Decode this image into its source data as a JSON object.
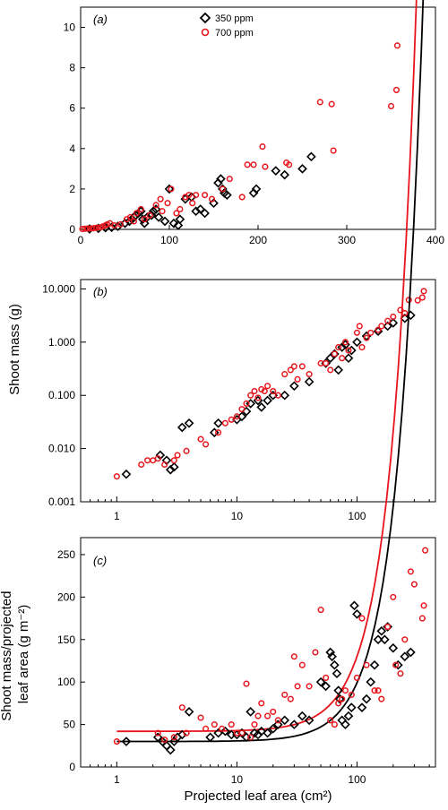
{
  "colors": {
    "s350": "#000000",
    "s700": "#e8141c"
  },
  "chart_data": [
    {
      "panel": "(a)",
      "type": "scatter",
      "xlim": [
        0,
        400
      ],
      "ylim": [
        0,
        11
      ],
      "xticks": [
        "0",
        "100",
        "200",
        "300",
        "400"
      ],
      "yticks": [
        "0",
        "2",
        "4",
        "6",
        "8",
        "10"
      ],
      "ylabel": "Shoot mass (g)",
      "legend": {
        "placement": "top-center",
        "entries": [
          "350 ppm",
          "700 ppm"
        ]
      },
      "series": [
        {
          "name": "350 ppm",
          "marker": "diamond",
          "x": [
            10,
            20,
            28,
            35,
            42,
            50,
            55,
            58,
            60,
            62,
            65,
            68,
            70,
            72,
            75,
            80,
            82,
            85,
            88,
            95,
            100,
            105,
            110,
            112,
            118,
            125,
            130,
            135,
            140,
            150,
            155,
            158,
            160,
            162,
            165,
            195,
            198,
            220,
            230,
            250,
            260
          ],
          "y": [
            0.02,
            0.05,
            0.08,
            0.1,
            0.15,
            0.3,
            0.4,
            0.5,
            0.6,
            0.7,
            0.8,
            0.9,
            0.5,
            0.3,
            0.6,
            0.7,
            0.9,
            1.0,
            0.6,
            0.4,
            2.0,
            0.3,
            0.2,
            0.5,
            1.5,
            1.6,
            0.9,
            1.0,
            0.8,
            1.3,
            2.3,
            2.5,
            2.0,
            1.8,
            1.7,
            1.8,
            2.0,
            2.9,
            2.7,
            3.0,
            3.6
          ]
        },
        {
          "name": "700 ppm",
          "marker": "circle",
          "x": [
            2,
            5,
            8,
            12,
            15,
            18,
            22,
            25,
            28,
            30,
            33,
            38,
            45,
            52,
            56,
            60,
            63,
            68,
            72,
            78,
            85,
            90,
            92,
            98,
            102,
            108,
            112,
            118,
            122,
            126,
            130,
            140,
            148,
            160,
            168,
            182,
            188,
            195,
            205,
            208,
            232,
            235,
            270,
            283,
            285,
            350,
            356,
            357
          ],
          "y": [
            0.02,
            0.03,
            0.04,
            0.05,
            0.06,
            0.08,
            0.1,
            0.15,
            0.2,
            0.25,
            0.3,
            0.2,
            0.25,
            0.5,
            0.6,
            0.4,
            0.8,
            1.0,
            0.5,
            0.7,
            1.2,
            1.5,
            0.9,
            1.3,
            2.0,
            0.8,
            1.0,
            1.6,
            1.7,
            1.3,
            1.7,
            1.7,
            1.5,
            2.0,
            2.5,
            1.6,
            3.2,
            3.2,
            4.1,
            3.1,
            3.3,
            3.2,
            6.3,
            6.2,
            3.9,
            6.1,
            6.9,
            9.1
          ]
        }
      ]
    },
    {
      "panel": "(b)",
      "type": "scatter",
      "xscale": "log",
      "yscale": "log",
      "xlim": [
        0.5,
        450
      ],
      "ylim": [
        0.001,
        15
      ],
      "xticks": [
        "1",
        "10",
        "100"
      ],
      "yticks": [
        "0.001",
        "0.010",
        "0.100",
        "1.000",
        "10.000"
      ],
      "series": [
        {
          "name": "350 ppm",
          "marker": "diamond",
          "x": [
            1.2,
            2.3,
            2.6,
            2.8,
            3.0,
            3.5,
            4,
            6.5,
            7,
            10,
            11,
            12,
            13,
            15,
            16,
            18,
            20,
            25,
            30,
            40,
            55,
            60,
            65,
            70,
            75,
            80,
            85,
            90,
            100,
            120,
            150,
            180,
            200,
            250,
            280
          ],
          "y": [
            0.0033,
            0.0075,
            0.006,
            0.004,
            0.0045,
            0.025,
            0.03,
            0.02,
            0.03,
            0.035,
            0.04,
            0.05,
            0.07,
            0.08,
            0.06,
            0.08,
            0.1,
            0.1,
            0.15,
            0.18,
            0.4,
            0.5,
            0.6,
            0.3,
            0.8,
            0.9,
            0.5,
            0.7,
            1.0,
            1.3,
            1.6,
            2.0,
            2.3,
            2.8,
            3.2
          ]
        },
        {
          "name": "700 ppm",
          "marker": "circle",
          "x": [
            1,
            1.6,
            1.8,
            2,
            2.2,
            2.5,
            3,
            3.2,
            3.8,
            5,
            5.5,
            7,
            8,
            9,
            10,
            11,
            12,
            13,
            14,
            15,
            16,
            17,
            18,
            20,
            22,
            25,
            28,
            30,
            32,
            35,
            40,
            50,
            55,
            60,
            65,
            70,
            75,
            80,
            85,
            100,
            105,
            110,
            120,
            130,
            150,
            160,
            180,
            200,
            230,
            250,
            270,
            320,
            350,
            360
          ],
          "y": [
            0.003,
            0.005,
            0.006,
            0.006,
            0.0065,
            0.005,
            0.006,
            0.0075,
            0.009,
            0.015,
            0.012,
            0.02,
            0.03,
            0.035,
            0.04,
            0.055,
            0.07,
            0.1,
            0.12,
            0.09,
            0.13,
            0.12,
            0.15,
            0.12,
            0.1,
            0.25,
            0.3,
            0.35,
            0.2,
            0.35,
            0.25,
            0.4,
            0.4,
            0.3,
            0.6,
            0.8,
            0.5,
            1.0,
            0.7,
            1.5,
            2.0,
            0.8,
            1.2,
            1.5,
            1.7,
            2.0,
            2.5,
            3.0,
            4.0,
            3.5,
            6.2,
            6.1,
            6.9,
            9.1
          ]
        }
      ]
    },
    {
      "panel": "(c)",
      "type": "scatter",
      "xscale": "log",
      "xlim": [
        0.5,
        450
      ],
      "ylim": [
        0,
        270
      ],
      "xticks": [
        "1",
        "10",
        "100"
      ],
      "yticks": [
        "0",
        "50",
        "100",
        "150",
        "200",
        "250"
      ],
      "xlabel": "Projected leaf area (cm²)",
      "ylabel": "Shoot mass/projected leaf area (g m⁻²)",
      "series": [
        {
          "name": "350 ppm",
          "marker": "diamond",
          "fit": [
            30,
            0.0069
          ],
          "x": [
            1.2,
            2.2,
            2.4,
            2.6,
            2.8,
            3.0,
            3.2,
            3.5,
            4,
            6,
            7,
            8,
            9,
            10,
            11,
            12,
            13,
            14,
            15,
            16,
            18,
            20,
            22,
            25,
            30,
            35,
            40,
            50,
            55,
            60,
            62,
            65,
            68,
            70,
            72,
            75,
            80,
            85,
            90,
            95,
            100,
            110,
            120,
            130,
            140,
            150,
            160,
            170,
            180,
            200,
            220,
            250,
            280
          ],
          "y": [
            30,
            35,
            30,
            25,
            20,
            30,
            35,
            38,
            65,
            35,
            40,
            42,
            38,
            38,
            40,
            35,
            65,
            40,
            38,
            42,
            40,
            45,
            50,
            55,
            50,
            60,
            55,
            100,
            95,
            135,
            130,
            120,
            110,
            90,
            80,
            55,
            50,
            60,
            70,
            190,
            180,
            70,
            80,
            100,
            120,
            150,
            160,
            150,
            165,
            140,
            120,
            130,
            135
          ]
        },
        {
          "name": "700 ppm",
          "marker": "circle",
          "fit": [
            42,
            0.0088
          ],
          "x": [
            1,
            2.2,
            2.5,
            3,
            3.5,
            3.8,
            5,
            5.5,
            6.5,
            7.5,
            9,
            10,
            11,
            12,
            13,
            14,
            15,
            16,
            18,
            20,
            22,
            25,
            28,
            30,
            32,
            35,
            40,
            45,
            50,
            55,
            60,
            65,
            70,
            75,
            80,
            90,
            100,
            110,
            120,
            140,
            150,
            160,
            180,
            200,
            210,
            230,
            250,
            280,
            300,
            350,
            360,
            370
          ],
          "y": [
            30,
            40,
            32,
            35,
            70,
            40,
            58,
            45,
            50,
            45,
            50,
            40,
            40,
            98,
            35,
            50,
            60,
            75,
            60,
            65,
            55,
            85,
            80,
            130,
            95,
            120,
            95,
            135,
            185,
            105,
            55,
            50,
            75,
            80,
            90,
            85,
            105,
            175,
            120,
            90,
            90,
            80,
            165,
            200,
            120,
            110,
            150,
            230,
            215,
            175,
            190,
            255
          ]
        }
      ]
    }
  ]
}
